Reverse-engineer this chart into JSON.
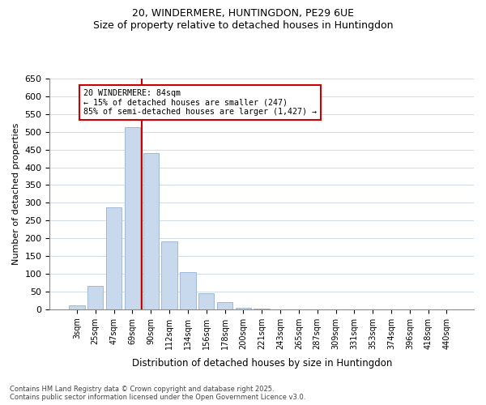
{
  "title_line1": "20, WINDERMERE, HUNTINGDON, PE29 6UE",
  "title_line2": "Size of property relative to detached houses in Huntingdon",
  "xlabel": "Distribution of detached houses by size in Huntingdon",
  "ylabel": "Number of detached properties",
  "bar_labels": [
    "3sqm",
    "25sqm",
    "47sqm",
    "69sqm",
    "90sqm",
    "112sqm",
    "134sqm",
    "156sqm",
    "178sqm",
    "200sqm",
    "221sqm",
    "243sqm",
    "265sqm",
    "287sqm",
    "309sqm",
    "331sqm",
    "353sqm",
    "374sqm",
    "396sqm",
    "418sqm",
    "440sqm"
  ],
  "bar_values": [
    10,
    66,
    287,
    513,
    440,
    191,
    105,
    46,
    20,
    5,
    1,
    0,
    0,
    0,
    0,
    0,
    0,
    0,
    0,
    0,
    0
  ],
  "bar_color": "#c9d9ed",
  "bar_edge_color": "#a0b8d8",
  "vline_x": 3.5,
  "vline_color": "#cc0000",
  "annotation_line1": "20 WINDERMERE: 84sqm",
  "annotation_line2": "← 15% of detached houses are smaller (247)",
  "annotation_line3": "85% of semi-detached houses are larger (1,427) →",
  "annotation_box_color": "#ffffff",
  "annotation_box_edge": "#cc0000",
  "ylim": [
    0,
    650
  ],
  "yticks": [
    0,
    50,
    100,
    150,
    200,
    250,
    300,
    350,
    400,
    450,
    500,
    550,
    600,
    650
  ],
  "footnote1": "Contains HM Land Registry data © Crown copyright and database right 2025.",
  "footnote2": "Contains public sector information licensed under the Open Government Licence v3.0.",
  "background_color": "#ffffff",
  "grid_color": "#d0dce8"
}
